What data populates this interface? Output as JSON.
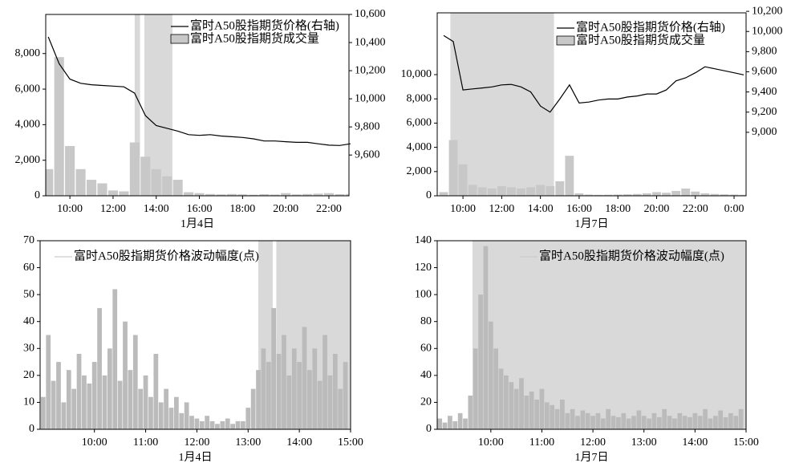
{
  "chart_data": [
    {
      "type": "combo",
      "xlabel": "1月4日",
      "x": [
        9.0,
        9.5,
        10.0,
        10.5,
        11.0,
        11.5,
        12.0,
        12.5,
        13.0,
        13.5,
        14.0,
        14.5,
        15.0,
        15.5,
        16.0,
        16.5,
        17.0,
        17.5,
        18.0,
        18.5,
        19.0,
        19.5,
        20.0,
        20.5,
        21.0,
        21.5,
        22.0,
        22.5,
        23.0
      ],
      "xlim": [
        8.88,
        22.93
      ],
      "xticks": [
        {
          "value": 10,
          "label": "10:00"
        },
        {
          "value": 12,
          "label": "12:00"
        },
        {
          "value": 14,
          "label": "14:00"
        },
        {
          "value": 16,
          "label": "16:00"
        },
        {
          "value": 18,
          "label": "18:00"
        },
        {
          "value": 20,
          "label": "20:00"
        },
        {
          "value": 22,
          "label": "22:00"
        }
      ],
      "ylim": [
        0,
        10200
      ],
      "yticks": [
        0,
        {
          "value": 2000,
          "label": "2,000"
        },
        {
          "value": 4000,
          "label": "4,000"
        },
        {
          "value": 6000,
          "label": "6,000"
        },
        {
          "value": 8000,
          "label": "8,000"
        }
      ],
      "y2lim": [
        9310,
        10600
      ],
      "y2ticks": [
        {
          "value": 9600,
          "label": "9,600"
        },
        {
          "value": 9800,
          "label": "9,800"
        },
        {
          "value": 10000,
          "label": "10,000"
        },
        {
          "value": 10200,
          "label": "10,200"
        },
        {
          "value": 10400,
          "label": "10,400"
        },
        {
          "value": 10600,
          "label": "10,600"
        }
      ],
      "shaded": [
        [
          13.0,
          13.25
        ],
        [
          13.45,
          14.75
        ]
      ],
      "series": [
        {
          "name": "富时A50股指期货价格(右轴)",
          "type": "line",
          "axis": "y2",
          "color": "#000000",
          "values": [
            10440,
            10250,
            10140,
            10110,
            10100,
            10095,
            10090,
            10085,
            10040,
            9880,
            9810,
            9790,
            9770,
            9745,
            9740,
            9745,
            9735,
            9730,
            9725,
            9715,
            9700,
            9700,
            9695,
            9690,
            9690,
            9680,
            9670,
            9668,
            9680
          ]
        },
        {
          "name": "富时A50股指期货成交量",
          "type": "bar",
          "color": "#c8c8c8",
          "values": [
            1500,
            7800,
            2800,
            1500,
            900,
            700,
            300,
            250,
            3000,
            2200,
            1500,
            1100,
            900,
            200,
            150,
            100,
            80,
            100,
            80,
            60,
            90,
            70,
            150,
            80,
            100,
            120,
            150,
            90,
            100
          ]
        }
      ]
    },
    {
      "type": "combo",
      "xlabel": "1月7日",
      "x": [
        9.0,
        9.5,
        10.0,
        10.5,
        11.0,
        11.5,
        12.0,
        12.5,
        13.0,
        13.5,
        14.0,
        14.5,
        15.0,
        15.5,
        16.0,
        16.5,
        17.0,
        17.5,
        18.0,
        18.5,
        19.0,
        19.5,
        20.0,
        20.5,
        21.0,
        21.5,
        22.0,
        22.5,
        23.0,
        23.5,
        24.0,
        24.5
      ],
      "xlim": [
        8.67,
        24.62
      ],
      "xticks": [
        {
          "value": 10,
          "label": "10:00"
        },
        {
          "value": 12,
          "label": "12:00"
        },
        {
          "value": 14,
          "label": "14:00"
        },
        {
          "value": 16,
          "label": "16:00"
        },
        {
          "value": 18,
          "label": "18:00"
        },
        {
          "value": 20,
          "label": "20:00"
        },
        {
          "value": 22,
          "label": "22:00"
        },
        {
          "value": 24,
          "label": "0:00"
        }
      ],
      "ylim": [
        0,
        15100
      ],
      "yticks": [
        0,
        {
          "value": 2000,
          "label": "2,000"
        },
        {
          "value": 4000,
          "label": "4,000"
        },
        {
          "value": 6000,
          "label": "6,000"
        },
        {
          "value": 8000,
          "label": "8,000"
        },
        {
          "value": 10000,
          "label": "10,000"
        }
      ],
      "y2lim": [
        8370,
        10185
      ],
      "y2ticks": [
        {
          "value": 9000,
          "label": "9,000"
        },
        {
          "value": 9200,
          "label": "9,200"
        },
        {
          "value": 9400,
          "label": "9,400"
        },
        {
          "value": 9600,
          "label": "9,600"
        },
        {
          "value": 9800,
          "label": "9,800"
        },
        {
          "value": 10000,
          "label": "10,000"
        },
        {
          "value": 10200,
          "label": "10,200"
        }
      ],
      "shaded": [
        [
          9.35,
          14.7
        ]
      ],
      "series": [
        {
          "name": "富时A50股指期货价格(右轴)",
          "type": "line",
          "axis": "y2",
          "color": "#000000",
          "values": [
            9960,
            9900,
            9420,
            9430,
            9440,
            9450,
            9470,
            9475,
            9450,
            9400,
            9260,
            9200,
            9330,
            9470,
            9290,
            9300,
            9320,
            9330,
            9330,
            9350,
            9360,
            9380,
            9380,
            9420,
            9510,
            9540,
            9590,
            9650,
            9630,
            9610,
            9590,
            9570
          ]
        },
        {
          "name": "富时A50股指期货成交量",
          "type": "bar",
          "color": "#c8c8c8",
          "values": [
            300,
            4600,
            2600,
            900,
            700,
            600,
            800,
            700,
            600,
            700,
            900,
            800,
            1200,
            3300,
            200,
            100,
            80,
            90,
            100,
            120,
            150,
            200,
            300,
            250,
            400,
            600,
            350,
            200,
            150,
            120,
            100,
            80
          ]
        }
      ]
    },
    {
      "type": "bar",
      "xlabel": "1月4日",
      "x": [
        9.0,
        9.1,
        9.2,
        9.3,
        9.4,
        9.5,
        9.6,
        9.7,
        9.8,
        9.9,
        10.0,
        10.1,
        10.2,
        10.3,
        10.4,
        10.5,
        10.6,
        10.7,
        10.8,
        10.9,
        11.0,
        11.1,
        11.2,
        11.3,
        11.4,
        11.5,
        11.6,
        11.7,
        11.8,
        11.9,
        12.0,
        12.1,
        12.2,
        12.3,
        12.4,
        12.5,
        12.6,
        12.7,
        12.8,
        12.9,
        13.0,
        13.1,
        13.2,
        13.3,
        13.4,
        13.5,
        13.6,
        13.7,
        13.8,
        13.9,
        14.0,
        14.1,
        14.2,
        14.3,
        14.4,
        14.5,
        14.6,
        14.7,
        14.8,
        14.9
      ],
      "xlim": [
        8.94,
        15
      ],
      "xticks": [
        {
          "value": 10,
          "label": "10:00"
        },
        {
          "value": 11,
          "label": "11:00"
        },
        {
          "value": 12,
          "label": "12:00"
        },
        {
          "value": 13,
          "label": "13:00"
        },
        {
          "value": 14,
          "label": "14:00"
        },
        {
          "value": 15,
          "label": "15:00"
        }
      ],
      "ylim": [
        0,
        70
      ],
      "yticks": [
        0,
        10,
        20,
        30,
        40,
        50,
        60,
        70
      ],
      "shaded": [
        [
          13.2,
          13.48
        ],
        [
          13.55,
          15
        ]
      ],
      "series": [
        {
          "name": "富时A50股指期货价格波动幅度(点)",
          "color": "#bbbbbb",
          "values": [
            12,
            35,
            18,
            25,
            10,
            22,
            15,
            28,
            20,
            17,
            25,
            45,
            20,
            30,
            52,
            18,
            40,
            22,
            35,
            15,
            20,
            12,
            28,
            10,
            15,
            8,
            12,
            6,
            10,
            5,
            4,
            3,
            5,
            3,
            2,
            3,
            4,
            2,
            3,
            3,
            8,
            15,
            22,
            30,
            25,
            45,
            28,
            35,
            20,
            30,
            25,
            38,
            22,
            30,
            18,
            35,
            20,
            28,
            15,
            25
          ]
        }
      ]
    },
    {
      "type": "bar",
      "xlabel": "1月7日",
      "x": [
        9.0,
        9.1,
        9.2,
        9.3,
        9.4,
        9.5,
        9.6,
        9.7,
        9.8,
        9.9,
        10.0,
        10.1,
        10.2,
        10.3,
        10.4,
        10.5,
        10.6,
        10.7,
        10.8,
        10.9,
        11.0,
        11.1,
        11.2,
        11.3,
        11.4,
        11.5,
        11.6,
        11.7,
        11.8,
        11.9,
        12.0,
        12.1,
        12.2,
        12.3,
        12.4,
        12.5,
        12.6,
        12.7,
        12.8,
        12.9,
        13.0,
        13.1,
        13.2,
        13.3,
        13.4,
        13.5,
        13.6,
        13.7,
        13.8,
        13.9,
        14.0,
        14.1,
        14.2,
        14.3,
        14.4,
        14.5,
        14.6,
        14.7,
        14.8,
        14.9
      ],
      "xlim": [
        8.95,
        15
      ],
      "xticks": [
        {
          "value": 10,
          "label": "10:00"
        },
        {
          "value": 11,
          "label": "11:00"
        },
        {
          "value": 12,
          "label": "12:00"
        },
        {
          "value": 13,
          "label": "13:00"
        },
        {
          "value": 14,
          "label": "14:00"
        },
        {
          "value": 15,
          "label": "15:00"
        }
      ],
      "ylim": [
        0,
        140
      ],
      "yticks": [
        0,
        20,
        40,
        60,
        80,
        100,
        120,
        140
      ],
      "shaded": [
        [
          9.64,
          15
        ]
      ],
      "series": [
        {
          "name": "富时A50股指期货价格波动幅度(点)",
          "color": "#bbbbbb",
          "values": [
            8,
            5,
            10,
            6,
            12,
            8,
            25,
            60,
            100,
            136,
            80,
            60,
            45,
            40,
            35,
            30,
            38,
            25,
            28,
            22,
            30,
            20,
            18,
            15,
            22,
            12,
            15,
            10,
            14,
            12,
            10,
            12,
            8,
            15,
            10,
            9,
            12,
            8,
            10,
            14,
            10,
            8,
            12,
            9,
            15,
            10,
            8,
            12,
            10,
            9,
            12,
            10,
            15,
            8,
            10,
            14,
            9,
            12,
            10,
            15
          ]
        }
      ]
    }
  ]
}
